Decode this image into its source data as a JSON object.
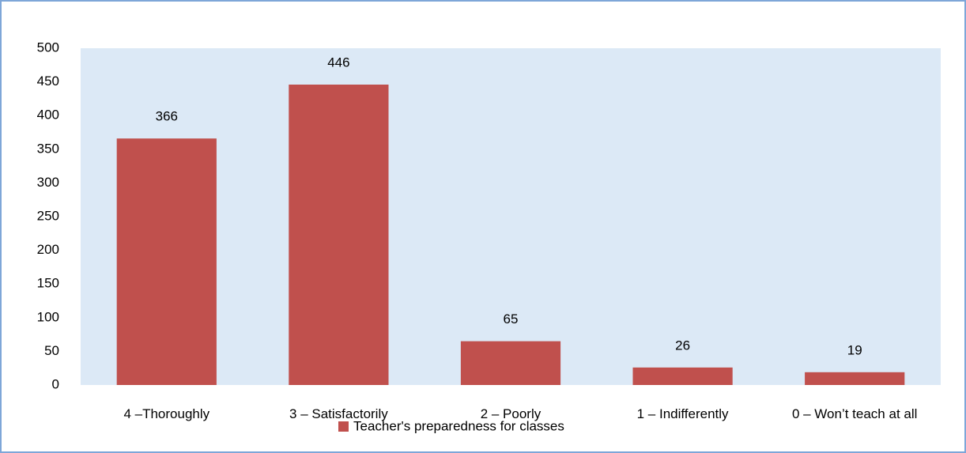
{
  "chart_data": {
    "type": "bar",
    "categories": [
      "4 –Thoroughly",
      "3 – Satisfactorily",
      "2 – Poorly",
      "1 – Indifferently",
      "0 – Won’t teach at all"
    ],
    "series": [
      {
        "name": "Teacher's preparedness for classes",
        "color": "#c0504d",
        "values": [
          366,
          446,
          65,
          26,
          19
        ]
      }
    ],
    "ylim": [
      0,
      500
    ],
    "yticks": [
      0,
      50,
      100,
      150,
      200,
      250,
      300,
      350,
      400,
      450,
      500
    ],
    "grid": false,
    "legend": "bottom"
  }
}
